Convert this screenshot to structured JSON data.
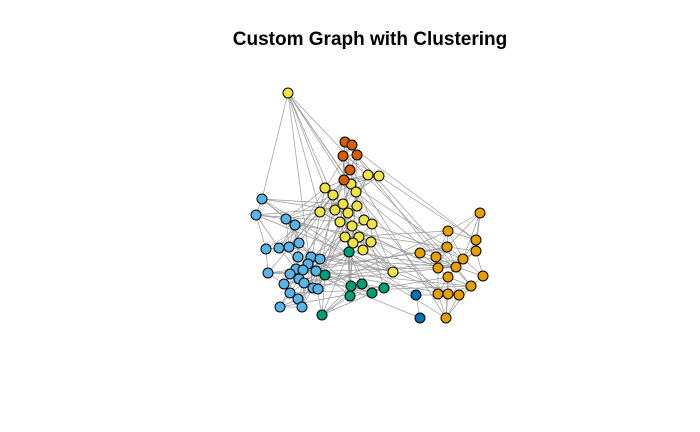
{
  "title": "Custom Graph with Clustering",
  "clusters": [
    {
      "id": "yellow",
      "color": "#F0E442"
    },
    {
      "id": "orange",
      "color": "#E69F00"
    },
    {
      "id": "skyblue",
      "color": "#56B4E9"
    },
    {
      "id": "green",
      "color": "#009E73"
    },
    {
      "id": "vermillion",
      "color": "#D55E00"
    },
    {
      "id": "blue",
      "color": "#0072B2"
    }
  ],
  "edge_color": "#9a9a9a",
  "node_count": 83
}
